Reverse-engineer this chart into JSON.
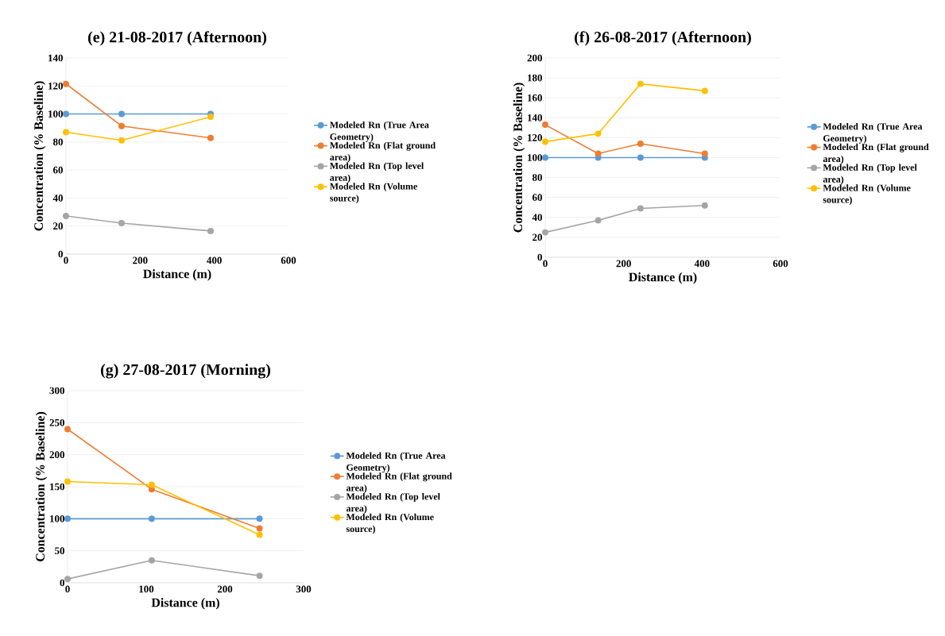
{
  "chart_data": [
    {
      "type": "line",
      "title": "(e) 21-08-2017 (Afternoon)",
      "xlabel": "Distance (m)",
      "ylabel": "Concentration (% Baseline)",
      "xlim": [
        0,
        600
      ],
      "xticks": [
        0,
        200,
        400,
        600
      ],
      "ylim": [
        0,
        140
      ],
      "yticks": [
        0,
        20,
        40,
        60,
        80,
        100,
        120,
        140
      ],
      "grid": "y",
      "legend": "right",
      "marker": "circle",
      "series": [
        {
          "name": "Modeled Rn (True Area Geometry)",
          "color": "#5b9bd5",
          "x": [
            0,
            150,
            390
          ],
          "values": [
            100,
            100,
            100
          ]
        },
        {
          "name": "Modeled Rn (Flat ground area)",
          "color": "#ed7d31",
          "x": [
            0,
            150,
            390
          ],
          "values": [
            121.5,
            91.4,
            82.9
          ]
        },
        {
          "name": "Modeled Rn (Top level area)",
          "color": "#a5a5a5",
          "x": [
            0,
            150,
            390
          ],
          "values": [
            27.2,
            22.1,
            16.5
          ]
        },
        {
          "name": "Modeled Rn (Volume source)",
          "color": "#ffc000",
          "x": [
            0,
            150,
            390
          ],
          "values": [
            87,
            81.2,
            98
          ]
        }
      ]
    },
    {
      "type": "line",
      "title": "(f) 26-08-2017 (Afternoon)",
      "xlabel": "Distance (m)",
      "ylabel": "Concentration (% Baseline)",
      "xlim": [
        0,
        600
      ],
      "xticks": [
        0,
        200,
        400,
        600
      ],
      "ylim": [
        0,
        200
      ],
      "yticks": [
        0,
        20,
        40,
        60,
        80,
        100,
        120,
        140,
        160,
        180,
        200
      ],
      "grid": "y",
      "legend": "right",
      "marker": "circle",
      "series": [
        {
          "name": "Modeled Rn (True Area Geometry)",
          "color": "#5b9bd5",
          "x": [
            0,
            135,
            243,
            407
          ],
          "values": [
            100,
            100,
            100,
            100
          ]
        },
        {
          "name": "Modeled Rn (Flat ground area)",
          "color": "#ed7d31",
          "x": [
            0,
            135,
            243,
            407
          ],
          "values": [
            133,
            104,
            114,
            104
          ]
        },
        {
          "name": "Modeled Rn (Top level area)",
          "color": "#a5a5a5",
          "x": [
            0,
            135,
            243,
            407
          ],
          "values": [
            25,
            37,
            49,
            52
          ]
        },
        {
          "name": "Modeled Rn (Volume source)",
          "color": "#ffc000",
          "x": [
            0,
            135,
            243,
            407
          ],
          "values": [
            116,
            124,
            174,
            167
          ]
        }
      ]
    },
    {
      "type": "line",
      "title": "(g) 27-08-2017 (Morning)",
      "xlabel": "Distance (m)",
      "ylabel": "Concentration (% Baseline)",
      "xlim": [
        0,
        300
      ],
      "xticks": [
        0,
        100,
        200,
        300
      ],
      "ylim": [
        0,
        300
      ],
      "yticks": [
        0,
        50,
        100,
        150,
        200,
        250,
        300
      ],
      "grid": "y",
      "legend": "right",
      "marker": "circle",
      "series": [
        {
          "name": "Modeled Rn (True Area Geometry)",
          "color": "#5b9bd5",
          "x": [
            0,
            107,
            244
          ],
          "values": [
            100,
            100,
            100
          ]
        },
        {
          "name": "Modeled Rn (Flat ground area)",
          "color": "#ed7d31",
          "x": [
            0,
            107,
            244
          ],
          "values": [
            240,
            146,
            85
          ]
        },
        {
          "name": "Modeled Rn (Top level area)",
          "color": "#a5a5a5",
          "x": [
            0,
            107,
            244
          ],
          "values": [
            6,
            35,
            11
          ]
        },
        {
          "name": "Modeled Rn (Volume source)",
          "color": "#ffc000",
          "x": [
            0,
            107,
            244
          ],
          "values": [
            158,
            153,
            75
          ]
        }
      ]
    }
  ]
}
